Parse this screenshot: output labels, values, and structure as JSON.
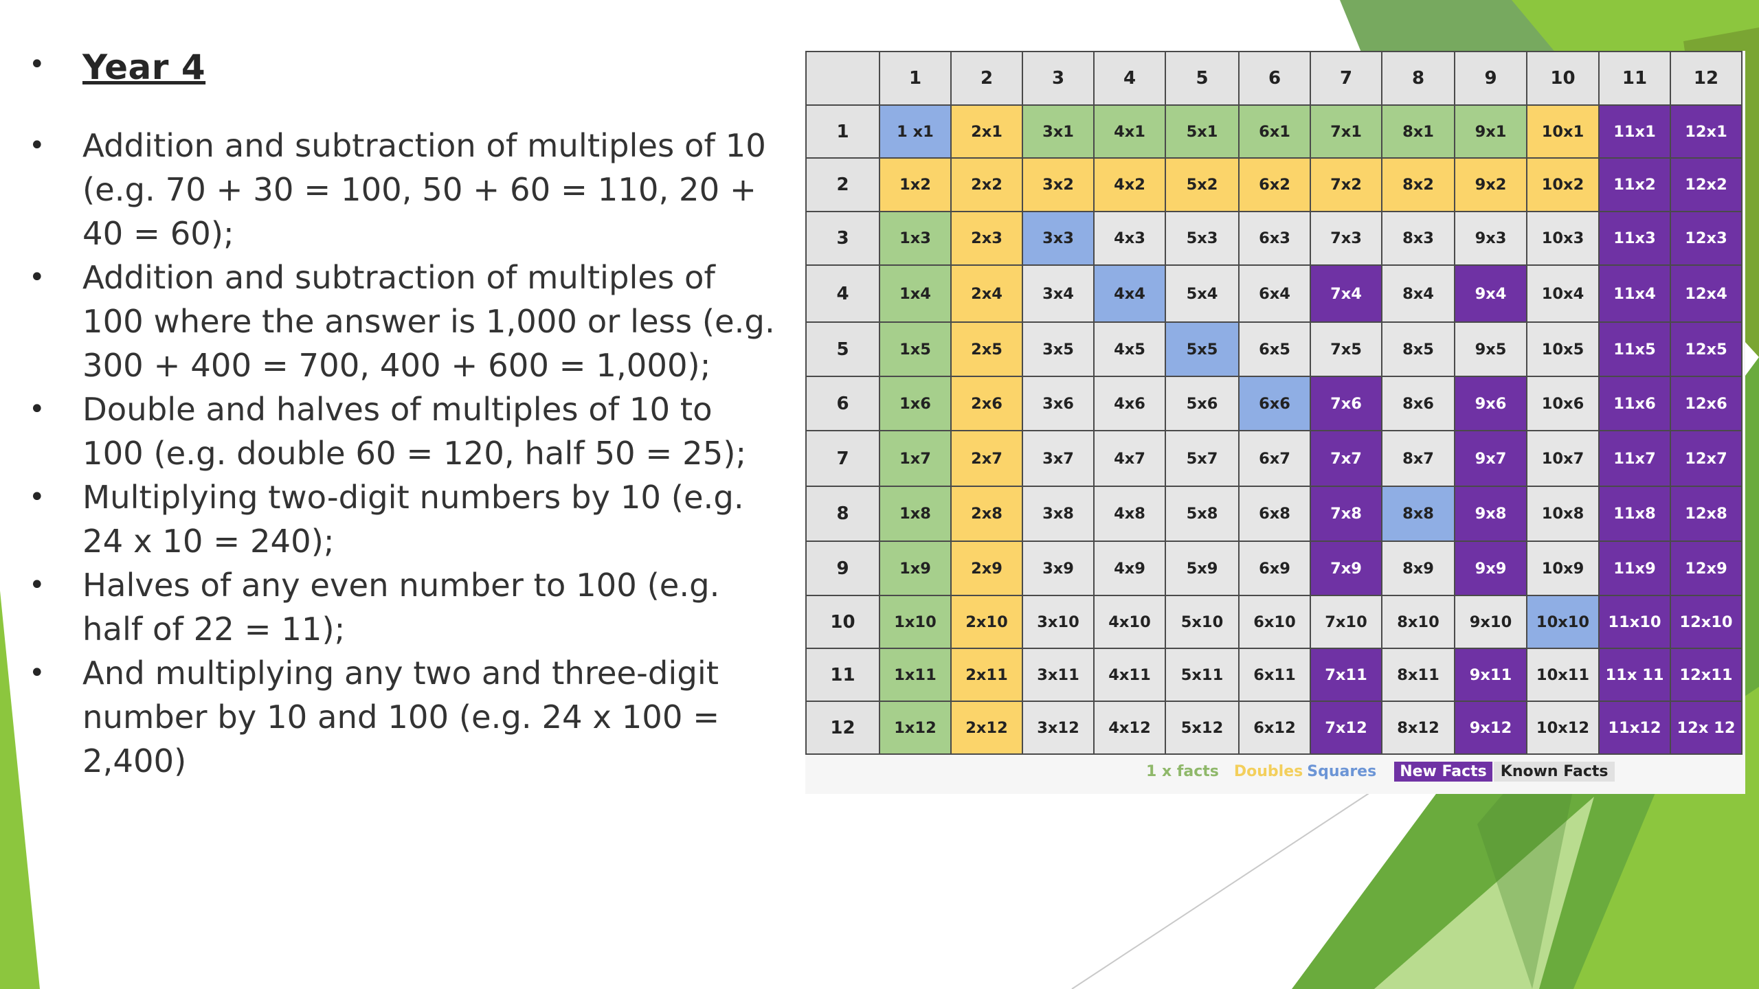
{
  "slide": {
    "title": "Year 4",
    "bullet_char": "•",
    "bullets": [
      "Addition and subtraction of multiples of 10 (e.g. 70 + 30 = 100, 50 + 60 = 110, 20 + 40 = 60);",
      "Addition and subtraction of multiples of 100 where the answer is 1,000 or less (e.g. 300 + 400 = 700, 400 + 600 = 1,000);",
      "Double and halves of multiples of 10 to 100 (e.g. double 60 = 120, half 50 = 25);",
      "Multiplying two-digit numbers by 10 (e.g. 24 x 10 = 240);",
      "Halves of any even number to 100 (e.g. half of 22 = 11);",
      "And multiplying any two and three-digit number by 10 and 100 (e.g. 24 x 100 = 2,400)"
    ]
  },
  "theme": {
    "accent_green": "#7ab539",
    "one_x_green": "#a6cf8c",
    "double_yellow": "#fbd46a",
    "square_blue": "#8faee4",
    "new_purple": "#6f32a4",
    "known_grey": "#e6e6e6"
  },
  "table": {
    "column_headers": [
      "1",
      "2",
      "3",
      "4",
      "5",
      "6",
      "7",
      "8",
      "9",
      "10",
      "11",
      "12"
    ],
    "row_headers": [
      "1",
      "2",
      "3",
      "4",
      "5",
      "6",
      "7",
      "8",
      "9",
      "10",
      "11",
      "12"
    ],
    "cells": [
      [
        "1 x1",
        "2x1",
        "3x1",
        "4x1",
        "5x1",
        "6x1",
        "7x1",
        "8x1",
        "9x1",
        "10x1",
        "11x1",
        "12x1"
      ],
      [
        "1x2",
        "2x2",
        "3x2",
        "4x2",
        "5x2",
        "6x2",
        "7x2",
        "8x2",
        "9x2",
        "10x2",
        "11x2",
        "12x2"
      ],
      [
        "1x3",
        "2x3",
        "3x3",
        "4x3",
        "5x3",
        "6x3",
        "7x3",
        "8x3",
        "9x3",
        "10x3",
        "11x3",
        "12x3"
      ],
      [
        "1x4",
        "2x4",
        "3x4",
        "4x4",
        "5x4",
        "6x4",
        "7x4",
        "8x4",
        "9x4",
        "10x4",
        "11x4",
        "12x4"
      ],
      [
        "1x5",
        "2x5",
        "3x5",
        "4x5",
        "5x5",
        "6x5",
        "7x5",
        "8x5",
        "9x5",
        "10x5",
        "11x5",
        "12x5"
      ],
      [
        "1x6",
        "2x6",
        "3x6",
        "4x6",
        "5x6",
        "6x6",
        "7x6",
        "8x6",
        "9x6",
        "10x6",
        "11x6",
        "12x6"
      ],
      [
        "1x7",
        "2x7",
        "3x7",
        "4x7",
        "5x7",
        "6x7",
        "7x7",
        "8x7",
        "9x7",
        "10x7",
        "11x7",
        "12x7"
      ],
      [
        "1x8",
        "2x8",
        "3x8",
        "4x8",
        "5x8",
        "6x8",
        "7x8",
        "8x8",
        "9x8",
        "10x8",
        "11x8",
        "12x8"
      ],
      [
        "1x9",
        "2x9",
        "3x9",
        "4x9",
        "5x9",
        "6x9",
        "7x9",
        "8x9",
        "9x9",
        "10x9",
        "11x9",
        "12x9"
      ],
      [
        "1x10",
        "2x10",
        "3x10",
        "4x10",
        "5x10",
        "6x10",
        "7x10",
        "8x10",
        "9x10",
        "10x10",
        "11x10",
        "12x10"
      ],
      [
        "1x11",
        "2x11",
        "3x11",
        "4x11",
        "5x11",
        "6x11",
        "7x11",
        "8x11",
        "9x11",
        "10x11",
        "11x 11",
        "12x11"
      ],
      [
        "1x12",
        "2x12",
        "3x12",
        "4x12",
        "5x12",
        "6x12",
        "7x12",
        "8x12",
        "9x12",
        "10x12",
        "11x12",
        "12x 12"
      ]
    ],
    "cell_types": [
      [
        "square",
        "double",
        "one",
        "one",
        "one",
        "one",
        "one",
        "one",
        "one",
        "double",
        "new",
        "new"
      ],
      [
        "double",
        "double",
        "double",
        "double",
        "double",
        "double",
        "double",
        "double",
        "double",
        "double",
        "new",
        "new"
      ],
      [
        "one",
        "double",
        "square",
        "known",
        "known",
        "known",
        "known",
        "known",
        "known",
        "known",
        "new",
        "new"
      ],
      [
        "one",
        "double",
        "known",
        "square",
        "known",
        "known",
        "new",
        "known",
        "new",
        "known",
        "new",
        "new"
      ],
      [
        "one",
        "double",
        "known",
        "known",
        "square",
        "known",
        "known",
        "known",
        "known",
        "known",
        "new",
        "new"
      ],
      [
        "one",
        "double",
        "known",
        "known",
        "known",
        "square",
        "new",
        "known",
        "new",
        "known",
        "new",
        "new"
      ],
      [
        "one",
        "double",
        "known",
        "known",
        "known",
        "known",
        "new",
        "known",
        "new",
        "known",
        "new",
        "new"
      ],
      [
        "one",
        "double",
        "known",
        "known",
        "known",
        "known",
        "new",
        "square",
        "new",
        "known",
        "new",
        "new"
      ],
      [
        "one",
        "double",
        "known",
        "known",
        "known",
        "known",
        "new",
        "known",
        "new",
        "known",
        "new",
        "new"
      ],
      [
        "one",
        "double",
        "known",
        "known",
        "known",
        "known",
        "known",
        "known",
        "known",
        "square",
        "new",
        "new"
      ],
      [
        "one",
        "double",
        "known",
        "known",
        "known",
        "known",
        "new",
        "known",
        "new",
        "known",
        "new",
        "new"
      ],
      [
        "one",
        "double",
        "known",
        "known",
        "known",
        "known",
        "new",
        "known",
        "new",
        "known",
        "new",
        "new"
      ]
    ],
    "legend": {
      "one_x": "1 x facts",
      "doubles": "Doubles",
      "squares": "Squares",
      "new": "New Facts",
      "known": "Known Facts"
    }
  }
}
